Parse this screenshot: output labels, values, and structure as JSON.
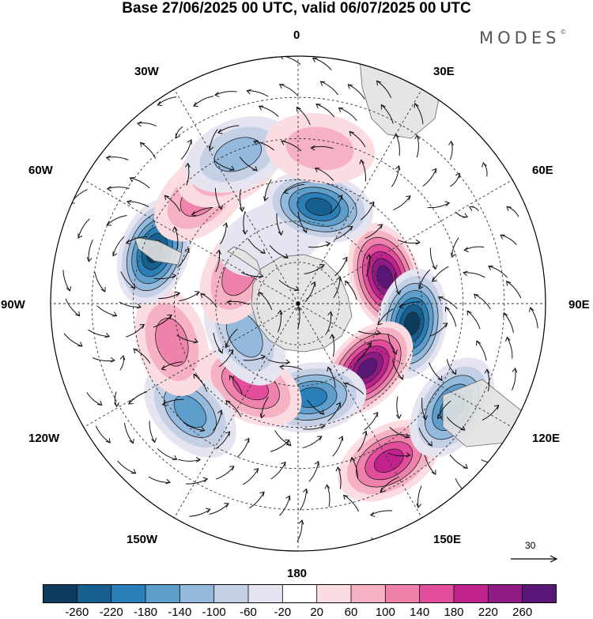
{
  "title": "Base 27/06/2025 00 UTC, valid 06/07/2025 00 UTC",
  "brand": {
    "name": "MODES",
    "mark": "©"
  },
  "lon_labels": {
    "n0": "0",
    "e30": "30E",
    "e60": "60E",
    "e90": "90E",
    "e120": "120E",
    "e150": "150E",
    "s180": "180",
    "w150": "150W",
    "w120": "120W",
    "w90": "90W",
    "w60": "60W",
    "w30": "30W"
  },
  "vector_scale": {
    "label": "30"
  },
  "colorbar": {
    "colors": [
      "#0d3c5e",
      "#16608f",
      "#2a7fb8",
      "#5e9ecd",
      "#93b9dc",
      "#c3d0e6",
      "#e6e4f0",
      "#ffffff",
      "#fbdde1",
      "#f6b2c3",
      "#ee82ad",
      "#e24d9c",
      "#c2228e",
      "#901a86",
      "#5b1777"
    ],
    "ticks": [
      "-260",
      "-220",
      "-180",
      "-140",
      "-100",
      "-60",
      "-20",
      "20",
      "60",
      "100",
      "140",
      "180",
      "220",
      "260"
    ]
  },
  "map": {
    "projection": "south polar stereographic",
    "field_anomalies": [
      {
        "lon_deg": 73,
        "colat_deg": 22,
        "value": 240
      },
      {
        "lon_deg": 100,
        "colat_deg": 28,
        "value": -240
      },
      {
        "lon_deg": 133,
        "colat_deg": 23,
        "value": 240
      },
      {
        "lon_deg": 150,
        "colat_deg": 44,
        "value": 170
      },
      {
        "lon_deg": 124,
        "colat_deg": 45,
        "value": -160
      },
      {
        "lon_deg": 172,
        "colat_deg": 23,
        "value": -190
      },
      {
        "lon_deg": 210,
        "colat_deg": 23,
        "value": 140
      },
      {
        "lon_deg": 225,
        "colat_deg": 37,
        "value": -120
      },
      {
        "lon_deg": 253,
        "colat_deg": 32,
        "value": 110
      },
      {
        "lon_deg": 240,
        "colat_deg": 15,
        "value": -100
      },
      {
        "lon_deg": 290,
        "colat_deg": 37,
        "value": -240
      },
      {
        "lon_deg": 298,
        "colat_deg": 16,
        "value": 110
      },
      {
        "lon_deg": 318,
        "colat_deg": 35,
        "value": 110
      },
      {
        "lon_deg": 333,
        "colat_deg": 37,
        "value": 80
      },
      {
        "lon_deg": 338,
        "colat_deg": 39,
        "value": -110
      },
      {
        "lon_deg": 338,
        "colat_deg": 17,
        "value": -30
      },
      {
        "lon_deg": 12,
        "colat_deg": 24,
        "value": -200
      },
      {
        "lon_deg": 8,
        "colat_deg": 38,
        "value": 40
      }
    ]
  }
}
